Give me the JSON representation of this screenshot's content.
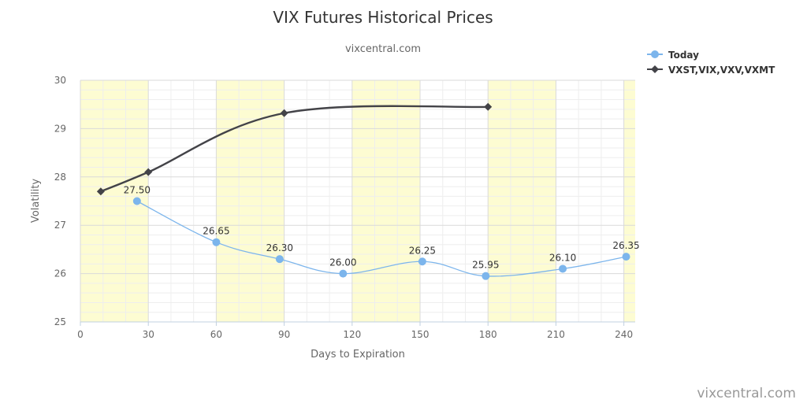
{
  "chart_data": {
    "type": "line",
    "title": "VIX Futures Historical Prices",
    "subtitle": "vixcentral.com",
    "xlabel": "Days to Expiration",
    "ylabel": "Volatility",
    "xlim": [
      0,
      245
    ],
    "ylim": [
      25,
      30
    ],
    "x_ticks": [
      0,
      30,
      60,
      90,
      120,
      150,
      180,
      210,
      240
    ],
    "y_ticks": [
      25,
      26,
      27,
      28,
      29,
      30
    ],
    "shaded_bands": [
      [
        0,
        30
      ],
      [
        60,
        90
      ],
      [
        120,
        150
      ],
      [
        180,
        210
      ],
      [
        240,
        245
      ]
    ],
    "band_color": "#fdfcd2",
    "grid": true,
    "legend_position": "top-right",
    "series": [
      {
        "name": "Today",
        "color": "#7cb5ec",
        "marker": "circle",
        "show_labels": true,
        "x": [
          25,
          60,
          88,
          116,
          151,
          179,
          213,
          241
        ],
        "y": [
          27.5,
          26.65,
          26.3,
          26.0,
          26.25,
          25.95,
          26.1,
          26.35
        ],
        "labels": [
          "27.50",
          "26.65",
          "26.30",
          "26.00",
          "26.25",
          "25.95",
          "26.10",
          "26.35"
        ]
      },
      {
        "name": "VXST,VIX,VXV,VXMT",
        "color": "#434348",
        "marker": "diamond",
        "show_labels": false,
        "x": [
          9,
          30,
          90,
          180
        ],
        "y": [
          27.7,
          28.1,
          29.32,
          29.45
        ]
      }
    ],
    "credit": "vixcentral.com"
  }
}
